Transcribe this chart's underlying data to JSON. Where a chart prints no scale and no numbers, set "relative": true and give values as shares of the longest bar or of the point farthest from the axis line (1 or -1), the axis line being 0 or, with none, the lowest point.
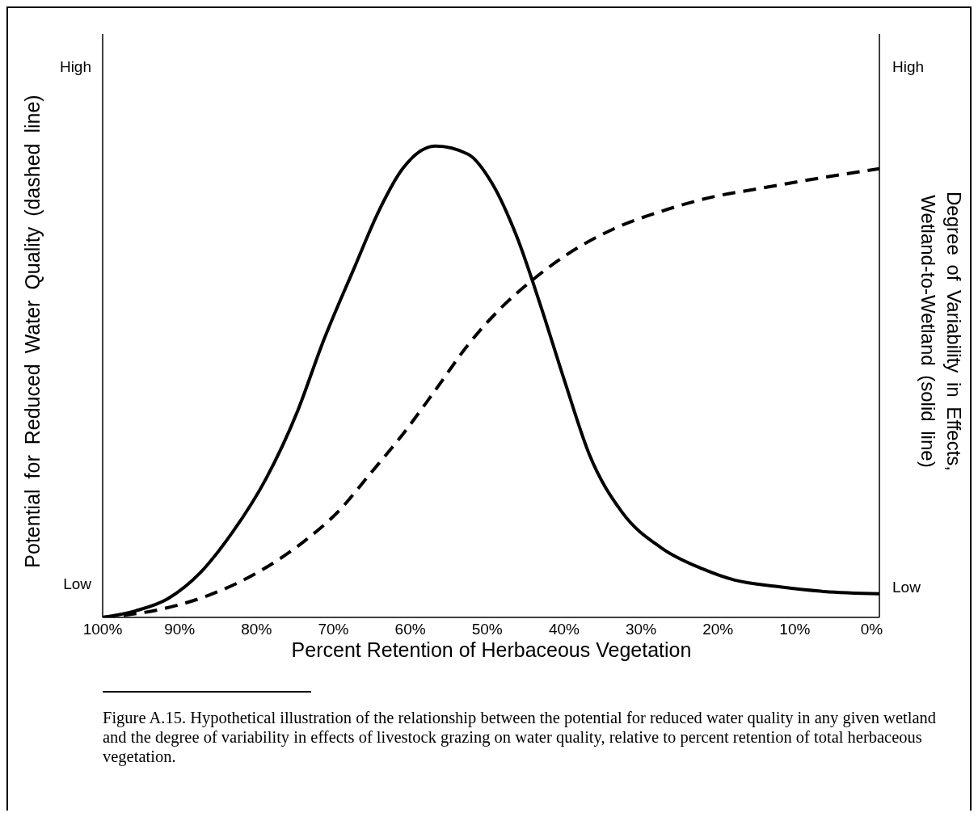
{
  "chart_data": {
    "type": "line",
    "relative": true,
    "xlabel": "Percent Retention of Herbaceous Vegetation",
    "ylabel": "Potential for Reduced Water Quality (dashed line)",
    "y2label": "Degree of Variability in Effects, Wetland-to-Wetland (solid line)",
    "annotations": [
      "High",
      "Low",
      "High",
      "Low",
      "Figure A.15. Hypothetical illustration of the relationship between the potential for reduced water quality in any given wetland and the degree of variability in effects of livestock grazing on water quality, relative to percent retention of total herbaceous vegetation."
    ],
    "xlim": [
      100,
      -1
    ],
    "xticks": [
      {
        "value": 100,
        "label": "100%"
      },
      {
        "value": 90,
        "label": "90%"
      },
      {
        "value": 80,
        "label": "80%"
      },
      {
        "value": 70,
        "label": "70%"
      },
      {
        "value": 60,
        "label": "60%"
      },
      {
        "value": 50,
        "label": "50%"
      },
      {
        "value": 40,
        "label": "40%"
      },
      {
        "value": 30,
        "label": "30%"
      },
      {
        "value": 20,
        "label": "20%"
      },
      {
        "value": 10,
        "label": "10%"
      },
      {
        "value": 0,
        "label": "0%"
      }
    ],
    "series": [
      {
        "color": "#000000",
        "line_style": "dashed",
        "x": [
          100,
          92.5,
          86.2,
          79.9,
          73.6,
          69.4,
          65.2,
          61,
          56.7,
          52.5,
          48.3,
          44.1,
          39.9,
          33.6,
          27.3,
          21,
          14.6,
          8.3,
          -1
        ],
        "values": [
          0,
          0.017,
          0.047,
          0.095,
          0.164,
          0.224,
          0.305,
          0.388,
          0.483,
          0.578,
          0.655,
          0.716,
          0.767,
          0.824,
          0.862,
          0.891,
          0.91,
          0.928,
          0.952
        ]
      },
      {
        "color": "#000000",
        "line_style": "solid",
        "x": [
          100,
          95.7,
          91.5,
          87.3,
          83.1,
          78.8,
          74.6,
          71.5,
          67.3,
          64.1,
          61,
          56.7,
          52.5,
          49.4,
          46.2,
          43.1,
          39.9,
          36.7,
          32.5,
          27.3,
          22,
          17.8,
          12.5,
          6.2,
          -1
        ],
        "values": [
          0,
          0.014,
          0.04,
          0.095,
          0.181,
          0.293,
          0.44,
          0.578,
          0.741,
          0.862,
          0.952,
          1,
          0.983,
          0.922,
          0.81,
          0.664,
          0.5,
          0.345,
          0.224,
          0.147,
          0.103,
          0.079,
          0.066,
          0.055,
          0.05
        ]
      }
    ]
  }
}
